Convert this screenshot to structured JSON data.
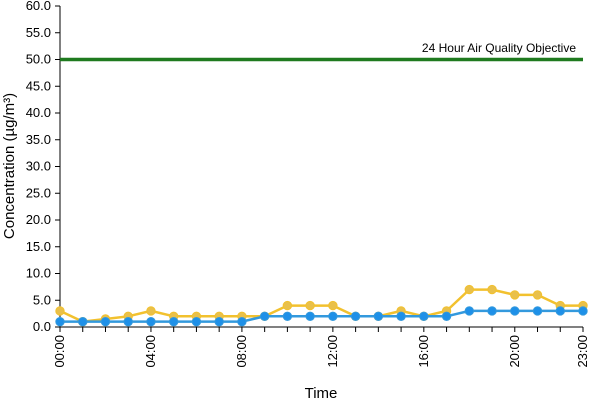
{
  "chart_data": {
    "type": "line",
    "title": "",
    "xlabel": "Time",
    "ylabel": "Concentration (µg/m³)",
    "ylim": [
      0,
      60
    ],
    "y_ticks": [
      "0.0",
      "5.0",
      "10.0",
      "15.0",
      "20.0",
      "25.0",
      "30.0",
      "35.0",
      "40.0",
      "45.0",
      "50.0",
      "55.0",
      "60.0"
    ],
    "x": [
      "00:00",
      "01:00",
      "02:00",
      "03:00",
      "04:00",
      "05:00",
      "06:00",
      "07:00",
      "08:00",
      "09:00",
      "10:00",
      "11:00",
      "12:00",
      "13:00",
      "14:00",
      "15:00",
      "16:00",
      "17:00",
      "18:00",
      "19:00",
      "20:00",
      "21:00",
      "22:00",
      "23:00"
    ],
    "x_tick_labels": [
      "00:00",
      "04:00",
      "08:00",
      "12:00",
      "16:00",
      "20:00",
      "23:00"
    ],
    "grid": false,
    "legend": "none",
    "series": [
      {
        "color": "#f2c12e",
        "marker_color": "#e9c04a",
        "values": [
          3,
          1,
          1.5,
          2,
          3,
          2,
          2,
          2,
          2,
          2,
          4,
          4,
          4,
          2,
          2,
          3,
          2,
          3,
          7,
          7,
          6,
          6,
          4,
          4
        ]
      },
      {
        "color": "#3399dd",
        "marker_color": "#1e90e8",
        "values": [
          1,
          1,
          1,
          1,
          1,
          1,
          1,
          1,
          1,
          2,
          2,
          2,
          2,
          2,
          2,
          2,
          2,
          2,
          3,
          3,
          3,
          3,
          3,
          3
        ]
      }
    ],
    "reference_line": {
      "value": 50,
      "label": "24 Hour Air Quality Objective",
      "color": "#1f7a1f"
    }
  }
}
